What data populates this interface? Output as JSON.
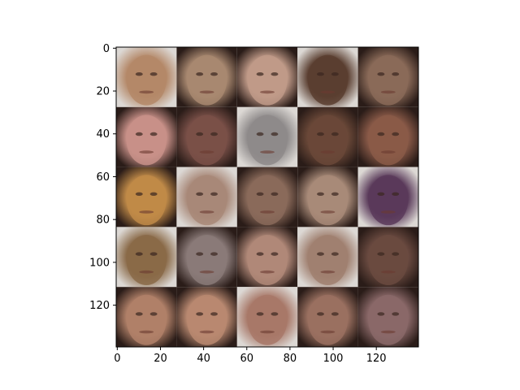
{
  "chart_data": {
    "type": "heatmap",
    "title": "",
    "xlabel": "",
    "ylabel": "",
    "xlim": [
      -0.5,
      139.5
    ],
    "ylim": [
      139.5,
      -0.5
    ],
    "y_inverted": true,
    "grid": false,
    "xticks": [
      0,
      20,
      40,
      60,
      80,
      100,
      120
    ],
    "yticks": [
      0,
      20,
      40,
      60,
      80,
      100,
      120
    ],
    "image_grid": {
      "rows": 5,
      "cols": 5,
      "tile_size_data_units": 28,
      "content": "generated face samples"
    },
    "tile_colors": [
      [
        "#b48868",
        "#a88870",
        "#c09a88",
        "#5a3e30",
        "#8a6a58"
      ],
      [
        "#c89088",
        "#7a5048",
        "#8e8a8a",
        "#6a4838",
        "#8a5a48"
      ],
      [
        "#c08a48",
        "#a88878",
        "#8a6a5a",
        "#a88a78",
        "#5a3a5a"
      ],
      [
        "#8a6a48",
        "#8a7a78",
        "#b08878",
        "#a08070",
        "#6a4a40"
      ],
      [
        "#b08068",
        "#b88870",
        "#a87868",
        "#9a7060",
        "#8a6868"
      ]
    ],
    "background_colors": {
      "dark": "#2a1c18",
      "light": "#dcd8d4"
    }
  }
}
